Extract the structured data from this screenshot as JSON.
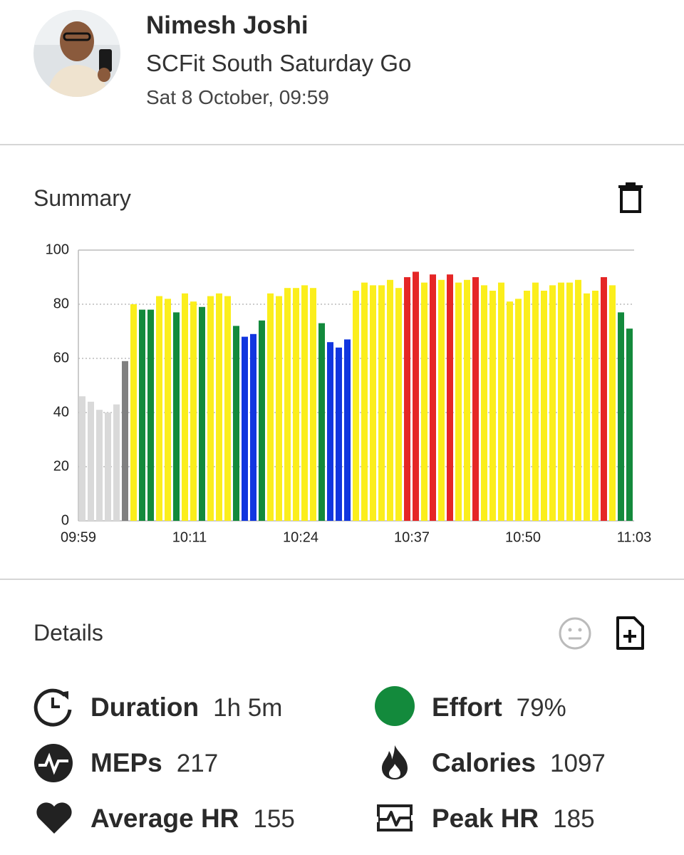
{
  "header": {
    "name": "Nimesh Joshi",
    "event": "SCFit South Saturday Go",
    "date": "Sat 8 October, 09:59"
  },
  "summary": {
    "title": "Summary"
  },
  "chart_data": {
    "type": "bar",
    "values": [
      46,
      44,
      41,
      40,
      43,
      59,
      80,
      78,
      78,
      83,
      82,
      77,
      84,
      81,
      79,
      83,
      84,
      83,
      72,
      68,
      69,
      74,
      84,
      83,
      86,
      86,
      87,
      86,
      73,
      66,
      64,
      67,
      85,
      88,
      87,
      87,
      89,
      86,
      90,
      92,
      88,
      91,
      89,
      91,
      88,
      89,
      90,
      87,
      85,
      88,
      81,
      82,
      85,
      88,
      85,
      87,
      88,
      88,
      89,
      84,
      85,
      90,
      87,
      77,
      71
    ],
    "colors": [
      "#d9d9d9",
      "#d9d9d9",
      "#d9d9d9",
      "#d9d9d9",
      "#d9d9d9",
      "#808080",
      "#fbee1c",
      "#138a3c",
      "#138a3c",
      "#fbee1c",
      "#fbee1c",
      "#138a3c",
      "#fbee1c",
      "#fbee1c",
      "#138a3c",
      "#fbee1c",
      "#fbee1c",
      "#fbee1c",
      "#138a3c",
      "#1236e0",
      "#1236e0",
      "#138a3c",
      "#fbee1c",
      "#fbee1c",
      "#fbee1c",
      "#fbee1c",
      "#fbee1c",
      "#fbee1c",
      "#138a3c",
      "#1236e0",
      "#1236e0",
      "#1236e0",
      "#fbee1c",
      "#fbee1c",
      "#fbee1c",
      "#fbee1c",
      "#fbee1c",
      "#fbee1c",
      "#e52626",
      "#e52626",
      "#fbee1c",
      "#e52626",
      "#fbee1c",
      "#e52626",
      "#fbee1c",
      "#fbee1c",
      "#e52626",
      "#fbee1c",
      "#fbee1c",
      "#fbee1c",
      "#fbee1c",
      "#fbee1c",
      "#fbee1c",
      "#fbee1c",
      "#fbee1c",
      "#fbee1c",
      "#fbee1c",
      "#fbee1c",
      "#fbee1c",
      "#fbee1c",
      "#fbee1c",
      "#e52626",
      "#fbee1c",
      "#138a3c",
      "#138a3c"
    ],
    "ylim": [
      0,
      100
    ],
    "yticks": [
      0,
      20,
      40,
      60,
      80,
      100
    ],
    "xtick_labels": [
      "09:59",
      "10:11",
      "10:24",
      "10:37",
      "10:50",
      "11:03"
    ],
    "grid": true
  },
  "details": {
    "title": "Details",
    "items": [
      {
        "label": "Duration",
        "value": "1h 5m"
      },
      {
        "label": "Effort",
        "value": "79%"
      },
      {
        "label": "MEPs",
        "value": "217"
      },
      {
        "label": "Calories",
        "value": "1097"
      },
      {
        "label": "Average HR",
        "value": "155"
      },
      {
        "label": "Peak HR",
        "value": "185"
      }
    ]
  }
}
